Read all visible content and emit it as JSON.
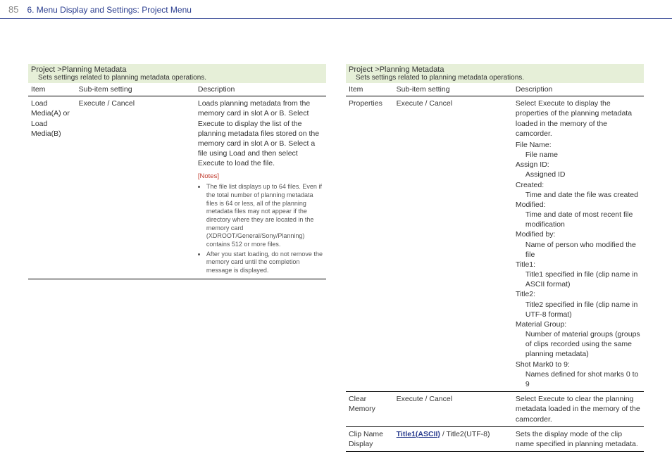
{
  "header": {
    "page_num": "85",
    "title": "6. Menu Display and Settings: Project Menu"
  },
  "colors": {
    "header_accent": "#2a3d8f",
    "section_bg": "#e6efd8",
    "notes_color": "#c0392b",
    "border": "#000000",
    "text": "#333333",
    "muted": "#888888"
  },
  "left": {
    "section_title": "Project >Planning Metadata",
    "section_sub": "Sets settings related to planning metadata operations.",
    "columns": {
      "item": "Item",
      "sub": "Sub-item setting",
      "desc": "Description"
    },
    "rows": [
      {
        "item": "Load Media(A) or Load Media(B)",
        "sub": "Execute / Cancel",
        "desc_main": "Loads planning metadata from the memory card in slot A or B.\nSelect Execute to display the list of the planning metadata files stored on the memory card in slot A or B. Select a file using Load and then select Execute to load the file.",
        "notes_heading": "[Notes]",
        "notes": [
          "The file list displays up to 64 files. Even if the total number of planning metadata files is 64 or less, all of the planning metadata files may not appear if the directory where they are located in the memory card (XDROOT/General/Sony/Planning) contains 512 or more files.",
          "After you start loading, do not remove the memory card until the completion message is displayed."
        ]
      }
    ]
  },
  "right": {
    "section_title": "Project >Planning Metadata",
    "section_sub": "Sets settings related to planning metadata operations.",
    "columns": {
      "item": "Item",
      "sub": "Sub-item setting",
      "desc": "Description"
    },
    "rows": [
      {
        "item": "Properties",
        "sub": "Execute / Cancel",
        "desc_main": "Select Execute to display the properties of the planning metadata loaded in the memory of the camcorder.",
        "meta": [
          {
            "k": "File Name:",
            "v": "File name"
          },
          {
            "k": "Assign ID:",
            "v": "Assigned ID"
          },
          {
            "k": "Created:",
            "v": "Time and date the file was created"
          },
          {
            "k": "Modified:",
            "v": "Time and date of most recent file modification"
          },
          {
            "k": "Modified by:",
            "v": "Name of person who modified the file"
          },
          {
            "k": "Title1:",
            "v": "Title1 specified in file (clip name in ASCII format)"
          },
          {
            "k": "Title2:",
            "v": "Title2 specified in file (clip name in UTF-8 format)"
          },
          {
            "k": "Material Group:",
            "v": "Number of material groups (groups of clips recorded using the same planning metadata)"
          },
          {
            "k": "Shot Mark0 to 9:",
            "v": "Names defined for shot marks 0 to 9"
          }
        ]
      },
      {
        "item": "Clear Memory",
        "sub": "Execute / Cancel",
        "desc_main": "Select Execute to clear the planning metadata loaded in the memory of the camcorder."
      },
      {
        "item": "Clip Name Display",
        "sub_default": "Title1(ASCII)",
        "sub_rest": " / Title2(UTF-8)",
        "desc_main": "Sets the display mode of the clip name specified in planning metadata."
      }
    ]
  }
}
